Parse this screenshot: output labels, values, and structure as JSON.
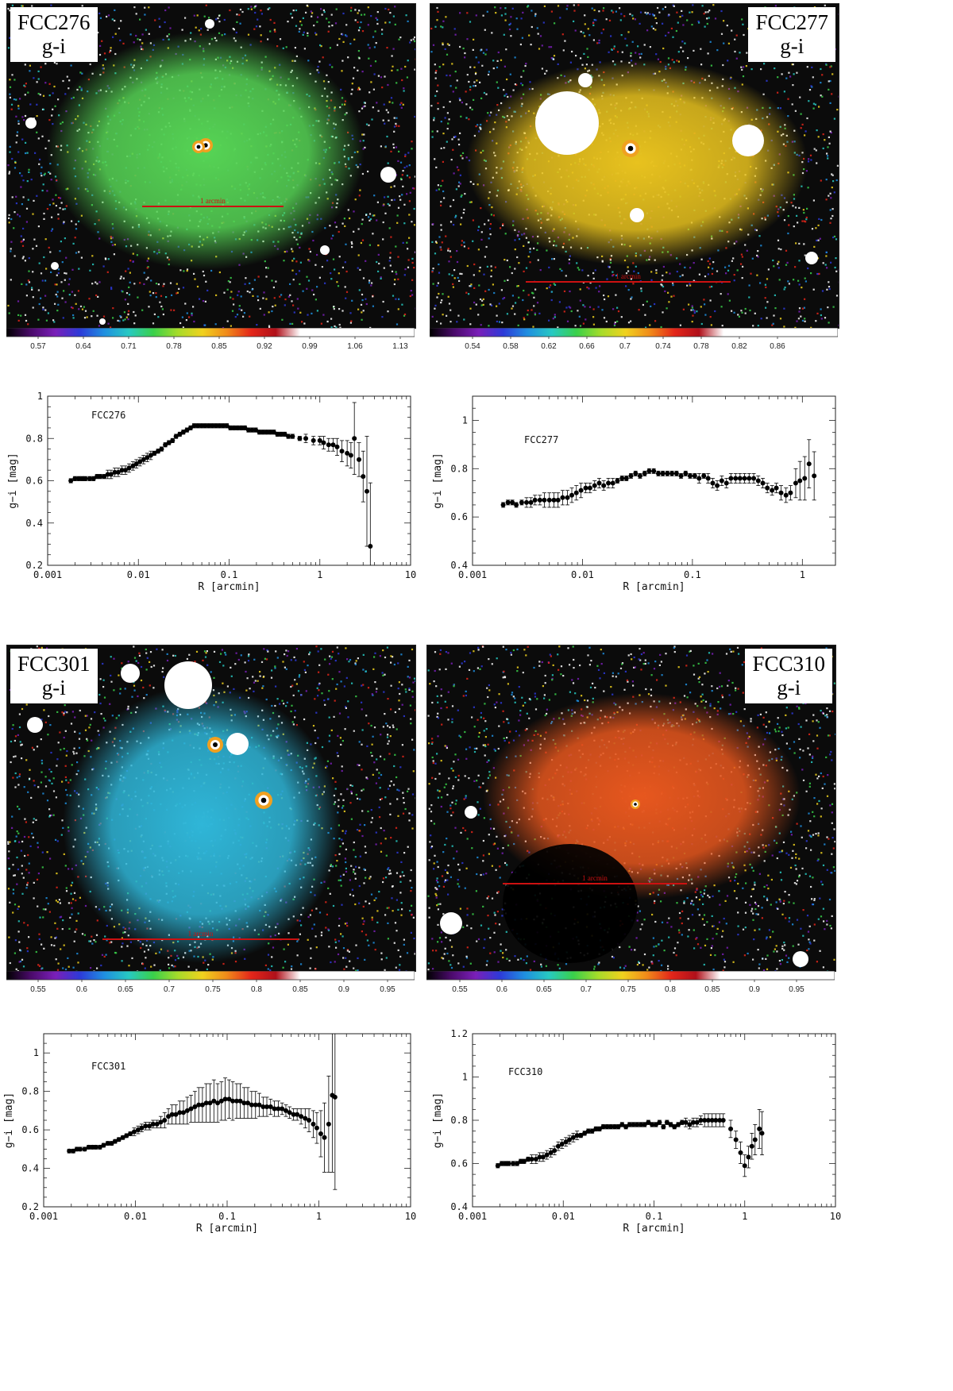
{
  "maps": [
    {
      "galaxy": "FCC276",
      "band": "g-i",
      "scalebar_label": "1 arcmin",
      "colorbar_ticks": [
        "0.57",
        "0.64",
        "0.71",
        "0.78",
        "0.85",
        "0.92",
        "0.99",
        "1.06",
        "1.13"
      ],
      "glow_color": "#56d455"
    },
    {
      "galaxy": "FCC277",
      "band": "g-i",
      "scalebar_label": "1 arcmin",
      "colorbar_ticks": [
        "0.54",
        "0.58",
        "0.62",
        "0.66",
        "0.7",
        "0.74",
        "0.78",
        "0.82",
        "0.86"
      ],
      "glow_color": "#e8c21e"
    },
    {
      "galaxy": "FCC301",
      "band": "g-i",
      "scalebar_label": "1 arcmin",
      "colorbar_ticks": [
        "0.55",
        "0.6",
        "0.65",
        "0.7",
        "0.75",
        "0.8",
        "0.85",
        "0.9",
        "0.95"
      ],
      "glow_color": "#2fb6d8"
    },
    {
      "galaxy": "FCC310",
      "band": "g-i",
      "scalebar_label": "1 arcmin",
      "colorbar_ticks": [
        "0.55",
        "0.6",
        "0.65",
        "0.7",
        "0.75",
        "0.8",
        "0.85",
        "0.9",
        "0.95"
      ],
      "glow_color": "#e7571e"
    }
  ],
  "chart_data": [
    {
      "type": "scatter",
      "title": "FCC276",
      "xlabel": "R [arcmin]",
      "ylabel": "g−i [mag]",
      "xscale": "log",
      "xlim": [
        0.001,
        10
      ],
      "ylim": [
        0.2,
        1
      ],
      "x_ticks": [
        "0.001",
        "0.01",
        "0.1",
        "1",
        "10"
      ],
      "y_ticks": [
        "0.2",
        "0.4",
        "0.6",
        "0.8",
        "1"
      ],
      "x": [
        0.0018,
        0.002,
        0.0022,
        0.0024,
        0.0026,
        0.0029,
        0.0032,
        0.0035,
        0.0038,
        0.0042,
        0.0046,
        0.005,
        0.0055,
        0.006,
        0.0066,
        0.0072,
        0.0079,
        0.0087,
        0.0095,
        0.0104,
        0.0114,
        0.0125,
        0.0137,
        0.015,
        0.0165,
        0.018,
        0.0198,
        0.0217,
        0.0238,
        0.026,
        0.0286,
        0.0313,
        0.0343,
        0.0376,
        0.0412,
        0.0452,
        0.0496,
        0.0543,
        0.0596,
        0.0653,
        0.0716,
        0.0785,
        0.086,
        0.0943,
        0.1034,
        0.1133,
        0.1242,
        0.1362,
        0.1493,
        0.1636,
        0.1794,
        0.1966,
        0.2156,
        0.2363,
        0.259,
        0.284,
        0.311,
        0.341,
        0.374,
        0.41,
        0.45,
        0.5,
        0.6,
        0.7,
        0.85,
        1.0,
        1.1,
        1.25,
        1.4,
        1.55,
        1.75,
        2.0,
        2.2,
        2.4,
        2.7,
        3.0,
        3.3,
        3.6
      ],
      "y": [
        0.6,
        0.61,
        0.61,
        0.61,
        0.61,
        0.61,
        0.61,
        0.62,
        0.62,
        0.62,
        0.63,
        0.63,
        0.64,
        0.64,
        0.65,
        0.65,
        0.66,
        0.67,
        0.68,
        0.69,
        0.7,
        0.71,
        0.72,
        0.73,
        0.74,
        0.75,
        0.77,
        0.78,
        0.79,
        0.81,
        0.82,
        0.83,
        0.84,
        0.85,
        0.86,
        0.86,
        0.86,
        0.86,
        0.86,
        0.86,
        0.86,
        0.86,
        0.86,
        0.86,
        0.85,
        0.85,
        0.85,
        0.85,
        0.85,
        0.84,
        0.84,
        0.84,
        0.83,
        0.83,
        0.83,
        0.83,
        0.83,
        0.82,
        0.82,
        0.82,
        0.81,
        0.81,
        0.8,
        0.8,
        0.79,
        0.79,
        0.78,
        0.77,
        0.77,
        0.76,
        0.74,
        0.73,
        0.72,
        0.8,
        0.7,
        0.62,
        0.55,
        0.29
      ],
      "yerr": [
        0.01,
        0.01,
        0.01,
        0.01,
        0.01,
        0.01,
        0.01,
        0.01,
        0.01,
        0.01,
        0.02,
        0.02,
        0.02,
        0.02,
        0.02,
        0.02,
        0.02,
        0.02,
        0.02,
        0.02,
        0.02,
        0.02,
        0.02,
        0.01,
        0.01,
        0.01,
        0.01,
        0.01,
        0.01,
        0.01,
        0.01,
        0.01,
        0.01,
        0.01,
        0.01,
        0.01,
        0.01,
        0.01,
        0.01,
        0.01,
        0.01,
        0.01,
        0.01,
        0.01,
        0.01,
        0.01,
        0.01,
        0.01,
        0.01,
        0.01,
        0.01,
        0.01,
        0.01,
        0.01,
        0.01,
        0.01,
        0.01,
        0.01,
        0.01,
        0.01,
        0.01,
        0.01,
        0.01,
        0.02,
        0.02,
        0.02,
        0.03,
        0.03,
        0.03,
        0.04,
        0.05,
        0.06,
        0.06,
        0.17,
        0.08,
        0.12,
        0.26,
        0.3
      ]
    },
    {
      "type": "scatter",
      "title": "FCC277",
      "xlabel": "R [arcmin]",
      "ylabel": "g−i [mag]",
      "xscale": "log",
      "xlim": [
        0.001,
        2
      ],
      "ylim": [
        0.4,
        1.1
      ],
      "x_ticks": [
        "0.001",
        "0.01",
        "0.1",
        "1"
      ],
      "y_ticks": [
        "0.4",
        "0.6",
        "0.8",
        "1"
      ],
      "x": [
        0.0019,
        0.0021,
        0.0023,
        0.0025,
        0.0028,
        0.0031,
        0.0034,
        0.0037,
        0.0041,
        0.0045,
        0.005,
        0.0055,
        0.006,
        0.0066,
        0.0073,
        0.008,
        0.0088,
        0.0097,
        0.0107,
        0.0117,
        0.0129,
        0.0142,
        0.0156,
        0.0172,
        0.0189,
        0.0208,
        0.0229,
        0.0251,
        0.0276,
        0.0304,
        0.0334,
        0.0368,
        0.0404,
        0.0445,
        0.049,
        0.0538,
        0.0592,
        0.0651,
        0.0717,
        0.0788,
        0.0867,
        0.0953,
        0.105,
        0.115,
        0.127,
        0.139,
        0.153,
        0.168,
        0.185,
        0.204,
        0.224,
        0.247,
        0.271,
        0.298,
        0.328,
        0.361,
        0.397,
        0.437,
        0.48,
        0.53,
        0.58,
        0.64,
        0.71,
        0.78,
        0.87,
        0.95,
        1.05,
        1.15,
        1.28
      ],
      "y": [
        0.65,
        0.66,
        0.66,
        0.65,
        0.66,
        0.66,
        0.66,
        0.67,
        0.67,
        0.67,
        0.67,
        0.67,
        0.67,
        0.68,
        0.68,
        0.69,
        0.7,
        0.71,
        0.72,
        0.72,
        0.73,
        0.74,
        0.73,
        0.74,
        0.74,
        0.75,
        0.76,
        0.76,
        0.77,
        0.78,
        0.77,
        0.78,
        0.79,
        0.79,
        0.78,
        0.78,
        0.78,
        0.78,
        0.78,
        0.77,
        0.78,
        0.77,
        0.77,
        0.76,
        0.77,
        0.76,
        0.74,
        0.73,
        0.75,
        0.74,
        0.76,
        0.76,
        0.76,
        0.76,
        0.76,
        0.76,
        0.75,
        0.74,
        0.72,
        0.71,
        0.72,
        0.7,
        0.69,
        0.7,
        0.74,
        0.75,
        0.76,
        0.82,
        0.77
      ],
      "yerr": [
        0.01,
        0.01,
        0.01,
        0.01,
        0.01,
        0.02,
        0.02,
        0.02,
        0.02,
        0.03,
        0.03,
        0.03,
        0.03,
        0.03,
        0.03,
        0.03,
        0.03,
        0.03,
        0.02,
        0.02,
        0.02,
        0.02,
        0.02,
        0.02,
        0.02,
        0.01,
        0.01,
        0.01,
        0.01,
        0.01,
        0.01,
        0.01,
        0.01,
        0.01,
        0.01,
        0.01,
        0.01,
        0.01,
        0.01,
        0.01,
        0.01,
        0.01,
        0.01,
        0.02,
        0.01,
        0.02,
        0.02,
        0.02,
        0.02,
        0.02,
        0.02,
        0.02,
        0.02,
        0.02,
        0.02,
        0.02,
        0.02,
        0.02,
        0.02,
        0.02,
        0.02,
        0.03,
        0.03,
        0.03,
        0.06,
        0.08,
        0.09,
        0.1,
        0.1
      ]
    },
    {
      "type": "scatter",
      "title": "FCC301",
      "xlabel": "R [arcmin]",
      "ylabel": "g−i [mag]",
      "xscale": "log",
      "xlim": [
        0.001,
        10
      ],
      "ylim": [
        0.2,
        1.1
      ],
      "x_ticks": [
        "0.001",
        "0.01",
        "0.1",
        "1",
        "10"
      ],
      "y_ticks": [
        "0.2",
        "0.4",
        "0.6",
        "0.8",
        "1"
      ],
      "x": [
        0.0019,
        0.0021,
        0.0023,
        0.0025,
        0.0028,
        0.0031,
        0.0034,
        0.0037,
        0.0041,
        0.0045,
        0.005,
        0.0055,
        0.006,
        0.0066,
        0.0073,
        0.008,
        0.0088,
        0.0097,
        0.0107,
        0.0117,
        0.0129,
        0.0142,
        0.0156,
        0.0172,
        0.0189,
        0.0208,
        0.0229,
        0.0251,
        0.0276,
        0.0304,
        0.0334,
        0.0368,
        0.0404,
        0.0445,
        0.049,
        0.0538,
        0.0592,
        0.0651,
        0.0717,
        0.0788,
        0.0867,
        0.0953,
        0.105,
        0.115,
        0.127,
        0.139,
        0.153,
        0.168,
        0.185,
        0.204,
        0.224,
        0.247,
        0.271,
        0.298,
        0.328,
        0.361,
        0.397,
        0.437,
        0.48,
        0.53,
        0.58,
        0.64,
        0.71,
        0.78,
        0.87,
        0.95,
        1.05,
        1.15,
        1.28,
        1.4,
        1.5
      ],
      "y": [
        0.49,
        0.49,
        0.5,
        0.5,
        0.5,
        0.51,
        0.51,
        0.51,
        0.51,
        0.52,
        0.53,
        0.53,
        0.54,
        0.55,
        0.56,
        0.57,
        0.58,
        0.59,
        0.6,
        0.61,
        0.62,
        0.62,
        0.63,
        0.63,
        0.64,
        0.65,
        0.67,
        0.68,
        0.68,
        0.69,
        0.69,
        0.7,
        0.71,
        0.72,
        0.73,
        0.73,
        0.74,
        0.74,
        0.75,
        0.74,
        0.75,
        0.76,
        0.76,
        0.75,
        0.75,
        0.75,
        0.74,
        0.74,
        0.73,
        0.73,
        0.73,
        0.72,
        0.72,
        0.72,
        0.71,
        0.71,
        0.71,
        0.7,
        0.69,
        0.68,
        0.68,
        0.67,
        0.66,
        0.65,
        0.63,
        0.61,
        0.58,
        0.56,
        0.63,
        0.78,
        0.77
      ],
      "yerr": [
        0.01,
        0.01,
        0.01,
        0.01,
        0.01,
        0.01,
        0.01,
        0.01,
        0.01,
        0.01,
        0.01,
        0.01,
        0.01,
        0.01,
        0.01,
        0.01,
        0.01,
        0.02,
        0.02,
        0.02,
        0.02,
        0.02,
        0.02,
        0.02,
        0.03,
        0.04,
        0.04,
        0.05,
        0.05,
        0.06,
        0.06,
        0.07,
        0.07,
        0.08,
        0.09,
        0.09,
        0.1,
        0.1,
        0.11,
        0.1,
        0.1,
        0.11,
        0.1,
        0.1,
        0.09,
        0.09,
        0.08,
        0.08,
        0.07,
        0.07,
        0.06,
        0.05,
        0.05,
        0.04,
        0.04,
        0.04,
        0.03,
        0.03,
        0.03,
        0.03,
        0.03,
        0.04,
        0.05,
        0.06,
        0.07,
        0.08,
        0.12,
        0.18,
        0.25,
        0.4,
        0.48
      ]
    },
    {
      "type": "scatter",
      "title": "FCC310",
      "xlabel": "R [arcmin]",
      "ylabel": "g−i [mag]",
      "xscale": "log",
      "xlim": [
        0.001,
        10
      ],
      "ylim": [
        0.4,
        1.2
      ],
      "x_ticks": [
        "0.001",
        "0.01",
        "0.1",
        "1",
        "10"
      ],
      "y_ticks": [
        "0.4",
        "0.6",
        "0.8",
        "1",
        "1.2"
      ],
      "x": [
        0.0019,
        0.0021,
        0.0023,
        0.0025,
        0.0028,
        0.0031,
        0.0034,
        0.0037,
        0.0041,
        0.0045,
        0.005,
        0.0055,
        0.006,
        0.0066,
        0.0073,
        0.008,
        0.0088,
        0.0097,
        0.0107,
        0.0117,
        0.0129,
        0.0142,
        0.0156,
        0.0172,
        0.0189,
        0.0208,
        0.0229,
        0.0251,
        0.0276,
        0.0304,
        0.0334,
        0.0368,
        0.0404,
        0.0445,
        0.049,
        0.0538,
        0.0592,
        0.0651,
        0.0717,
        0.0788,
        0.0867,
        0.0953,
        0.105,
        0.115,
        0.127,
        0.139,
        0.153,
        0.168,
        0.185,
        0.204,
        0.224,
        0.247,
        0.271,
        0.298,
        0.328,
        0.361,
        0.397,
        0.437,
        0.48,
        0.53,
        0.58,
        0.7,
        0.8,
        0.9,
        1.0,
        1.1,
        1.2,
        1.3,
        1.45,
        1.55
      ],
      "y": [
        0.59,
        0.6,
        0.6,
        0.6,
        0.6,
        0.6,
        0.61,
        0.61,
        0.62,
        0.62,
        0.62,
        0.63,
        0.63,
        0.64,
        0.65,
        0.66,
        0.68,
        0.69,
        0.7,
        0.71,
        0.72,
        0.73,
        0.73,
        0.74,
        0.75,
        0.75,
        0.76,
        0.76,
        0.77,
        0.77,
        0.77,
        0.77,
        0.77,
        0.78,
        0.77,
        0.78,
        0.78,
        0.78,
        0.78,
        0.78,
        0.79,
        0.78,
        0.78,
        0.79,
        0.77,
        0.79,
        0.78,
        0.77,
        0.78,
        0.79,
        0.79,
        0.78,
        0.79,
        0.79,
        0.8,
        0.8,
        0.8,
        0.8,
        0.8,
        0.8,
        0.8,
        0.76,
        0.71,
        0.65,
        0.59,
        0.63,
        0.68,
        0.71,
        0.76,
        0.74
      ],
      "yerr": [
        0.01,
        0.01,
        0.01,
        0.01,
        0.01,
        0.01,
        0.01,
        0.01,
        0.01,
        0.02,
        0.02,
        0.02,
        0.02,
        0.02,
        0.02,
        0.02,
        0.02,
        0.02,
        0.02,
        0.02,
        0.02,
        0.02,
        0.01,
        0.01,
        0.01,
        0.01,
        0.01,
        0.01,
        0.01,
        0.01,
        0.01,
        0.01,
        0.01,
        0.01,
        0.01,
        0.01,
        0.01,
        0.01,
        0.01,
        0.01,
        0.01,
        0.01,
        0.01,
        0.01,
        0.01,
        0.01,
        0.01,
        0.01,
        0.01,
        0.01,
        0.02,
        0.02,
        0.02,
        0.02,
        0.02,
        0.03,
        0.03,
        0.03,
        0.03,
        0.03,
        0.03,
        0.04,
        0.04,
        0.05,
        0.05,
        0.05,
        0.06,
        0.07,
        0.09,
        0.1
      ]
    }
  ],
  "colors": {
    "point": "#000000",
    "scalebar": "#cc1111",
    "label_bg": "#ffffff"
  }
}
